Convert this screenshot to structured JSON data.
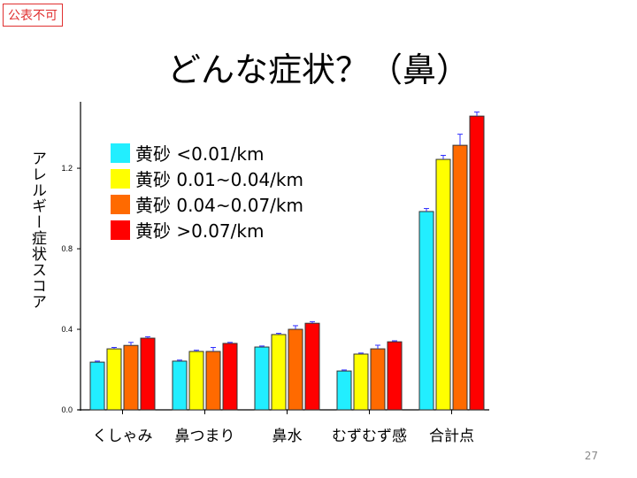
{
  "stamp": "公表不可",
  "title": "どんな症状？（鼻）",
  "page_number": "27",
  "chart_data": {
    "type": "bar",
    "title": "",
    "xlabel": "",
    "ylabel": "アレルギー症状スコア",
    "ylim": [
      0,
      1.53
    ],
    "yticks": [
      0.0,
      0.4,
      0.8,
      1.2
    ],
    "ytick_labels": [
      "0.0",
      "0.4",
      "0.8",
      "1.2"
    ],
    "categories": [
      "くしゃみ",
      "鼻つまり",
      "鼻水",
      "むずむず感",
      "合計点"
    ],
    "legend_placement": "top-left",
    "series": [
      {
        "name": "黄砂 <0.01/km",
        "color": "#22eeff",
        "values": [
          0.237,
          0.242,
          0.312,
          0.193,
          0.985
        ],
        "errors": [
          0.005,
          0.005,
          0.005,
          0.005,
          0.015
        ]
      },
      {
        "name": "黄砂 0.01~0.04/km",
        "color": "#ffff00",
        "values": [
          0.303,
          0.29,
          0.374,
          0.277,
          1.244
        ],
        "errors": [
          0.007,
          0.006,
          0.006,
          0.005,
          0.02
        ]
      },
      {
        "name": "黄砂 0.04~0.07/km",
        "color": "#ff6a00",
        "values": [
          0.32,
          0.29,
          0.4,
          0.303,
          1.314
        ],
        "errors": [
          0.015,
          0.02,
          0.018,
          0.018,
          0.055
        ]
      },
      {
        "name": "黄砂 >0.07/km",
        "color": "#ff0000",
        "values": [
          0.356,
          0.33,
          0.43,
          0.338,
          1.459
        ],
        "errors": [
          0.007,
          0.005,
          0.008,
          0.005,
          0.02
        ]
      }
    ]
  }
}
